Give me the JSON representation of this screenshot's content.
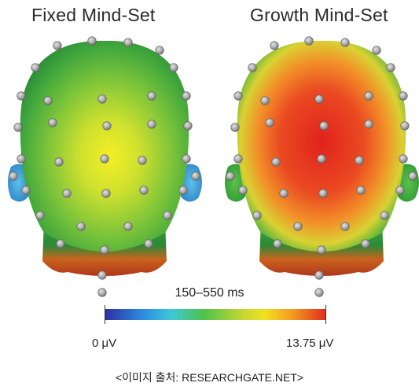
{
  "titles": {
    "left": "Fixed Mind-Set",
    "right": "Growth Mind-Set"
  },
  "time_window": "150–550 ms",
  "colorbar": {
    "min_label": "0 μV",
    "max_label": "13.75 μV",
    "colors": [
      "#2c2fa0",
      "#2e8fe0",
      "#3ec8d8",
      "#4fc24a",
      "#b8d437",
      "#f0e21f",
      "#f39a20",
      "#e02b1c"
    ]
  },
  "source": "<이미지 출처: RESEARCHGATE.NET>",
  "colors": {
    "fixed_center": "#f2ee2a",
    "fixed_edge": "#2f9a3a",
    "growth_center": "#e0261e",
    "growth_mid": "#f08c28",
    "growth_edge": "#2f9a3a",
    "neck_base": "#c4461e",
    "ear_fixed": "#4aa8de",
    "ear_growth": "#4cb040",
    "electrode": "#a8a8a8"
  }
}
